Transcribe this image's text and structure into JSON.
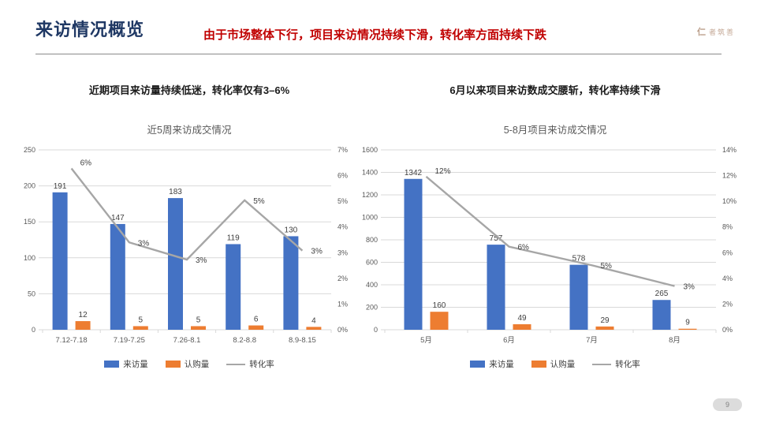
{
  "header": {
    "title": "来访情况概览",
    "subtitle": "由于市场整体下行，项目来访情况持续下滑，转化率方面持续下跌",
    "logo": "者筑善",
    "logo_icon": "仁"
  },
  "page_number": "9",
  "sections": [
    {
      "headline": "近期项目来访量持续低迷，转化率仅有3–6%"
    },
    {
      "headline": "6月以来项目来访数成交腰斩，转化率持续下滑"
    }
  ],
  "colors": {
    "visits": "#4472C4",
    "subscriptions": "#ED7D31",
    "conversion_line": "#A6A6A6",
    "grid": "#D9D9D9",
    "tick_text": "#595959",
    "label_text": "#404040",
    "accent_title": "#1F3864",
    "accent_red": "#C00000"
  },
  "chart_data": [
    {
      "type": "bar",
      "title": "近5周来访成交情况",
      "categories": [
        "7.12-7.18",
        "7.19-7.25",
        "7.26-8.1",
        "8.2-8.8",
        "8.9-8.15"
      ],
      "series": [
        {
          "name": "来访量",
          "color": "#4472C4",
          "values": [
            191,
            147,
            183,
            119,
            130
          ]
        },
        {
          "name": "认购量",
          "color": "#ED7D31",
          "values": [
            12,
            5,
            5,
            6,
            4
          ]
        }
      ],
      "line": {
        "name": "转化率",
        "color": "#A6A6A6",
        "values": [
          6.28,
          3.4,
          2.73,
          5.04,
          3.08
        ],
        "labels": [
          "6%",
          "3%",
          "3%",
          "5%",
          "3%"
        ]
      },
      "y1": {
        "max": 250,
        "ticks": [
          0,
          50,
          100,
          150,
          200,
          250
        ]
      },
      "y2": {
        "max": 7,
        "ticks": [
          "0%",
          "1%",
          "2%",
          "3%",
          "4%",
          "5%",
          "6%",
          "7%"
        ]
      },
      "legend_position": "bottom",
      "grid": true
    },
    {
      "type": "bar",
      "title": "5-8月项目来访成交情况",
      "categories": [
        "5月",
        "6月",
        "7月",
        "8月"
      ],
      "series": [
        {
          "name": "来访量",
          "color": "#4472C4",
          "values": [
            1342,
            757,
            578,
            265
          ]
        },
        {
          "name": "认购量",
          "color": "#ED7D31",
          "values": [
            160,
            49,
            29,
            9
          ]
        }
      ],
      "line": {
        "name": "转化率",
        "color": "#A6A6A6",
        "values": [
          11.92,
          6.47,
          5.02,
          3.4
        ],
        "labels": [
          "12%",
          "6%",
          "5%",
          "3%"
        ]
      },
      "y1": {
        "max": 1600,
        "ticks": [
          0,
          200,
          400,
          600,
          800,
          1000,
          1200,
          1400,
          1600
        ]
      },
      "y2": {
        "max": 14,
        "ticks": [
          "0%",
          "2%",
          "4%",
          "6%",
          "8%",
          "10%",
          "12%",
          "14%"
        ]
      },
      "legend_position": "bottom",
      "grid": true
    }
  ]
}
